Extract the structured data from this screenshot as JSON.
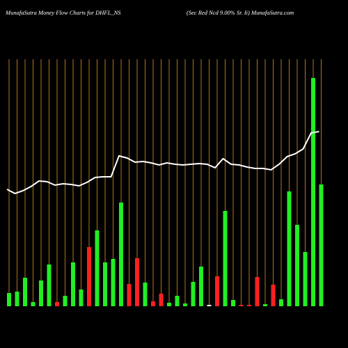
{
  "chart_data": {
    "type": "bar",
    "title": "MunafaSutra  Money Flow  Charts for DHFL_NS",
    "subtitle": "(Sec Red Ncd 9.00% Sr. Ii) MunafaSutra.com",
    "ylim": [
      0,
      440
    ],
    "grid_color": "#b8741a",
    "series": [
      {
        "name": "Money flow",
        "values": [
          19,
          21,
          41,
          6,
          37,
          60,
          6,
          15,
          63,
          24,
          85,
          109,
          63,
          68,
          149,
          32,
          69,
          34,
          7,
          18,
          5,
          15,
          4,
          35,
          57,
          2,
          43,
          137,
          9,
          2,
          2,
          42,
          3,
          31,
          10,
          165,
          117,
          78,
          328,
          175
        ],
        "colors": [
          "#22ee22",
          "#22ee22",
          "#22ee22",
          "#22ee22",
          "#22ee22",
          "#22ee22",
          "#ff2020",
          "#22ee22",
          "#22ee22",
          "#22ee22",
          "#ff2020",
          "#22ee22",
          "#22ee22",
          "#22ee22",
          "#22ee22",
          "#ff2020",
          "#ff2020",
          "#22ee22",
          "#ff2020",
          "#ff2020",
          "#22ee22",
          "#22ee22",
          "#22ee22",
          "#22ee22",
          "#22ee22",
          "#eeeeee",
          "#ff2020",
          "#22ee22",
          "#22ee22",
          "#ff2020",
          "#ff2020",
          "#ff2020",
          "#22ee22",
          "#ff2020",
          "#22ee22",
          "#22ee22",
          "#22ee22",
          "#22ee22",
          "#22ee22",
          "#22ee22"
        ]
      },
      {
        "name": "Price",
        "color": "#ffffff",
        "values": [
          168,
          162,
          166,
          172,
          180,
          179,
          174,
          176,
          175,
          173,
          178,
          185,
          186,
          186,
          216,
          213,
          207,
          208,
          206,
          203,
          206,
          204,
          203,
          204,
          205,
          204,
          199,
          212,
          204,
          203,
          200,
          198,
          198,
          196,
          204,
          215,
          219,
          226,
          249,
          251
        ]
      }
    ]
  }
}
